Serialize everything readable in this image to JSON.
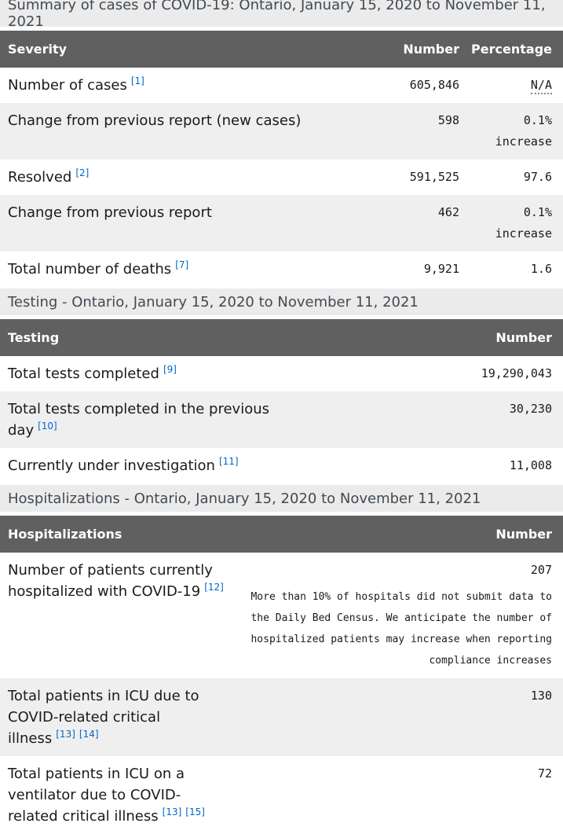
{
  "theme": {
    "section_bar_bg": "#ebebeb",
    "section_bar_text": "#414a53",
    "table_header_bg": "#606060",
    "table_header_text": "#ffffff",
    "zebra_row_bg": "#efefef",
    "body_text": "#1a1a1a",
    "footnote_link": "#0066cc"
  },
  "severity_table": {
    "caption": "Summary of cases of COVID-19: Ontario, January 15, 2020 to November 11, 2021",
    "headers": {
      "label": "Severity",
      "number": "Number",
      "percentage": "Percentage"
    },
    "rows": [
      {
        "label": "Number of cases",
        "refs": [
          "[1]"
        ],
        "number": "605,846",
        "percentage": "N/A"
      },
      {
        "label": "Change from previous report (new cases)",
        "number": "598",
        "percentage": "0.1%",
        "percentage_note": "increase"
      },
      {
        "label": "Resolved",
        "refs": [
          "[2]"
        ],
        "number": "591,525",
        "percentage": "97.6"
      },
      {
        "label": "Change from previous report",
        "number": "462",
        "percentage": "0.1%",
        "percentage_note": "increase"
      },
      {
        "label": "Total number of deaths",
        "refs": [
          "[7]"
        ],
        "number": "9,921",
        "percentage": "1.6"
      }
    ]
  },
  "testing_table": {
    "caption": "Testing - Ontario, January 15, 2020 to November 11, 2021",
    "headers": {
      "label": "Testing",
      "number": "Number"
    },
    "rows": [
      {
        "label": "Total tests completed",
        "refs": [
          "[9]"
        ],
        "number": "19,290,043"
      },
      {
        "label": "Total tests completed in the previous day",
        "refs": [
          "[10]"
        ],
        "number": "30,230"
      },
      {
        "label": "Currently under investigation",
        "refs": [
          "[11]"
        ],
        "number": "11,008"
      }
    ]
  },
  "hospitalizations_table": {
    "caption": "Hospitalizations - Ontario, January 15, 2020 to November 11, 2021",
    "headers": {
      "label": "Hospitalizations",
      "number": "Number"
    },
    "rows": [
      {
        "label": "Number of patients currently hospitalized with COVID-19",
        "refs": [
          "[12]"
        ],
        "number": "207",
        "note": "More than 10% of hospitals did not submit data to the Daily Bed Census. We anticipate the number of hospitalized patients may increase when reporting compliance increases"
      },
      {
        "label": "Total patients in ICU due to COVID-related critical illness",
        "refs": [
          "[13]",
          "[14]"
        ],
        "number": "130"
      },
      {
        "label": "Total patients in ICU on a ventilator due to COVID-related critical illness",
        "refs": [
          "[13]",
          "[15]"
        ],
        "number": "72"
      }
    ]
  }
}
